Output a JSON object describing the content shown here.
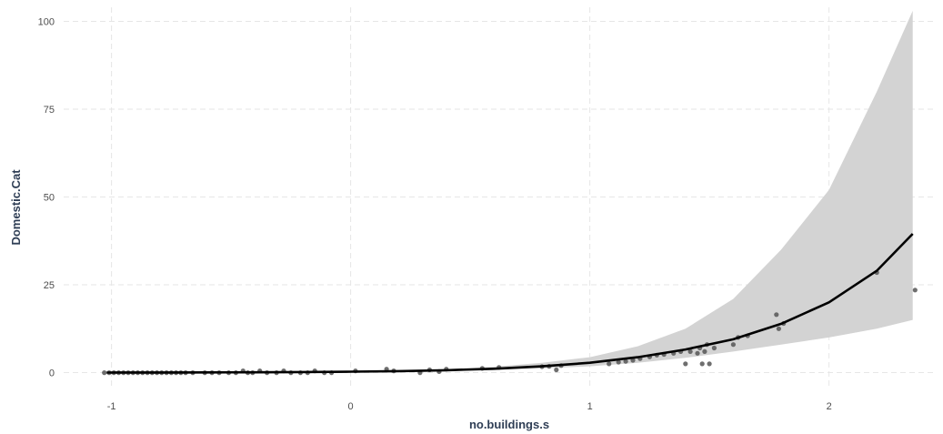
{
  "chart_data": {
    "type": "scatter",
    "xlabel": "no.buildings.s",
    "ylabel": "Domestic.Cat",
    "xlim": [
      -1.2,
      2.45
    ],
    "ylim": [
      -4,
      104
    ],
    "x_ticks": [
      -1,
      0,
      1,
      2
    ],
    "x_tick_labels": [
      "-1",
      "0",
      "1",
      "2"
    ],
    "y_ticks": [
      0,
      25,
      50,
      75,
      100
    ],
    "y_tick_labels": [
      "0",
      "25",
      "50",
      "75",
      "100"
    ],
    "grid": true,
    "legend": "none",
    "colors": {
      "points": "#555555",
      "fit_line": "#000000",
      "ribbon": "#d3d3d3",
      "grid": "#e6e6e6",
      "axis_title": "#2f3e55"
    },
    "fit": {
      "x": [
        -1.02,
        -0.8,
        -0.6,
        -0.4,
        -0.2,
        0.0,
        0.2,
        0.4,
        0.6,
        0.8,
        1.0,
        1.2,
        1.4,
        1.6,
        1.8,
        2.0,
        2.2,
        2.35
      ],
      "y": [
        0.02,
        0.04,
        0.07,
        0.1,
        0.17,
        0.27,
        0.43,
        0.7,
        1.1,
        1.8,
        2.8,
        4.4,
        6.6,
        9.5,
        13.9,
        20.0,
        29.0,
        39.5
      ],
      "lower": [
        0.01,
        0.02,
        0.05,
        0.08,
        0.13,
        0.2,
        0.3,
        0.5,
        0.8,
        1.2,
        1.8,
        2.8,
        4.2,
        6.0,
        8.0,
        10.0,
        12.5,
        15.0
      ],
      "upper": [
        0.04,
        0.07,
        0.1,
        0.14,
        0.22,
        0.35,
        0.6,
        1.0,
        1.7,
        2.8,
        4.4,
        7.5,
        12.5,
        21.0,
        35.0,
        52.0,
        80.0,
        103.0
      ]
    },
    "points": {
      "x": [
        -1.03,
        -1.01,
        -0.99,
        -0.97,
        -0.95,
        -0.93,
        -0.91,
        -0.89,
        -0.87,
        -0.85,
        -0.83,
        -0.81,
        -0.79,
        -0.77,
        -0.75,
        -0.73,
        -0.71,
        -0.69,
        -0.66,
        -0.61,
        -0.58,
        -0.55,
        -0.51,
        -0.48,
        -0.45,
        -0.43,
        -0.41,
        -0.38,
        -0.35,
        -0.31,
        -0.28,
        -0.25,
        -0.21,
        -0.18,
        -0.15,
        -0.11,
        -0.08,
        0.02,
        0.15,
        0.18,
        0.29,
        0.33,
        0.37,
        0.4,
        0.55,
        0.62,
        0.8,
        0.83,
        0.86,
        0.88,
        1.08,
        1.12,
        1.15,
        1.18,
        1.21,
        1.25,
        1.28,
        1.31,
        1.35,
        1.38,
        1.4,
        1.42,
        1.45,
        1.46,
        1.47,
        1.48,
        1.49,
        1.5,
        1.52,
        1.6,
        1.62,
        1.66,
        1.78,
        1.79,
        1.81,
        2.2,
        2.36
      ],
      "y": [
        0,
        0,
        0,
        0,
        0,
        0,
        0,
        0,
        0,
        0,
        0,
        0,
        0,
        0,
        0,
        0,
        0,
        0,
        0,
        0,
        0,
        0,
        0,
        0,
        0.5,
        0,
        0,
        0.5,
        0,
        0,
        0.5,
        0,
        0,
        0,
        0.5,
        0,
        0,
        0.5,
        1,
        0.5,
        0,
        0.8,
        0.3,
        1,
        1.2,
        1.5,
        1.7,
        1.8,
        0.8,
        2,
        2.5,
        3,
        3.2,
        3.5,
        4,
        4.5,
        5,
        5.2,
        5.5,
        6,
        2.5,
        6,
        5.5,
        7,
        2.5,
        6,
        8,
        2.5,
        7,
        8,
        10,
        10.5,
        16.5,
        12.5,
        14,
        28.5,
        23.5
      ]
    }
  }
}
